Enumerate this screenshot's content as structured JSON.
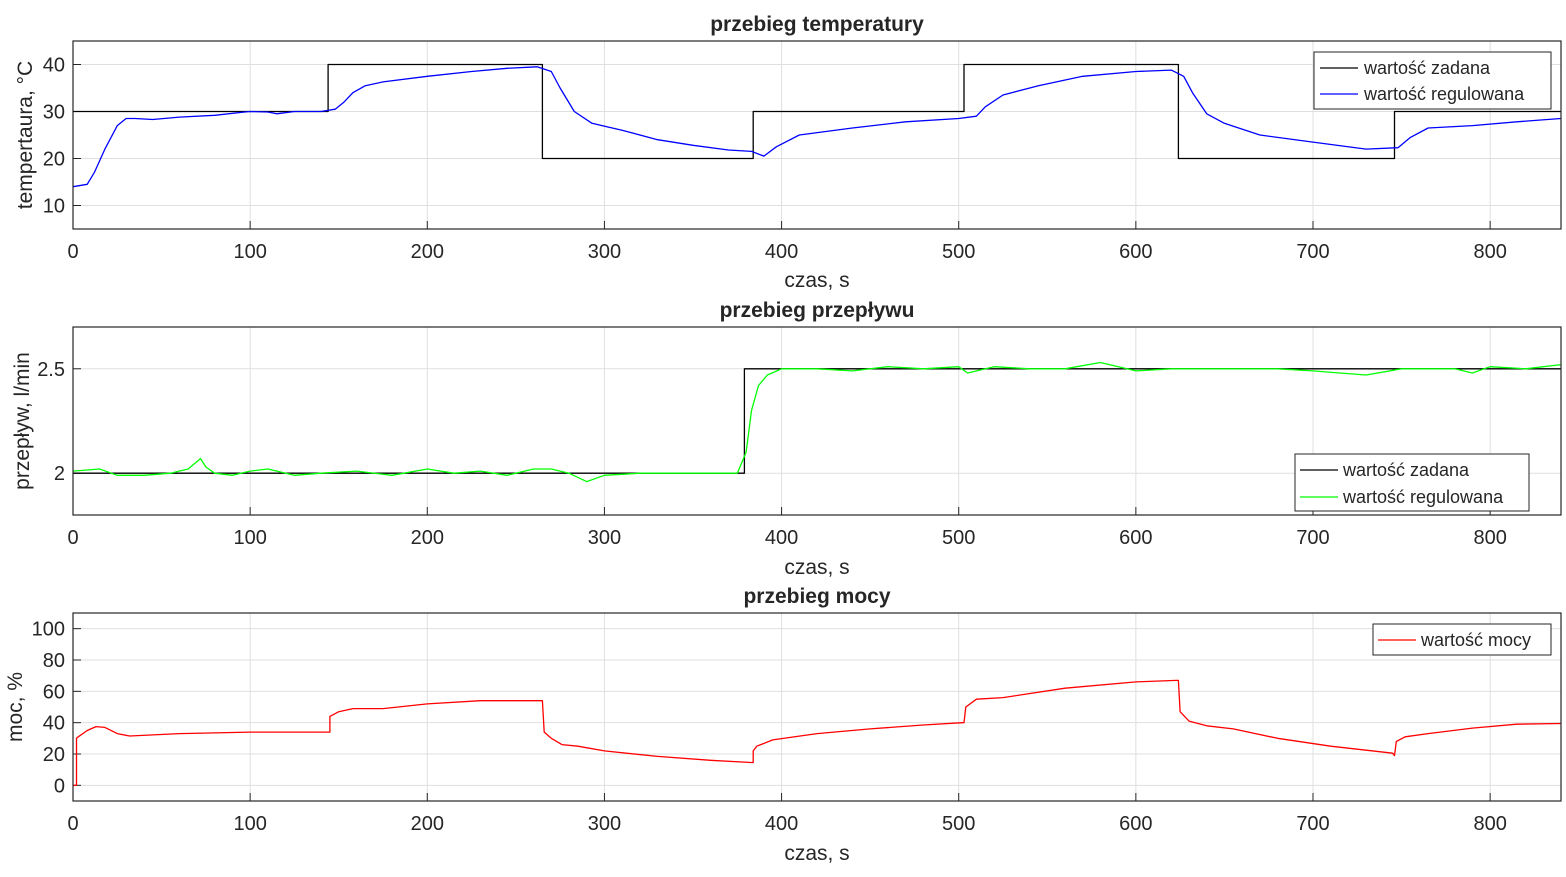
{
  "chart_data": [
    {
      "type": "line",
      "title": "przebieg temperatury",
      "xlabel": "czas, s",
      "ylabel": "tempertaura, °C",
      "xlim": [
        0,
        840
      ],
      "ylim": [
        5,
        45
      ],
      "xticks": [
        0,
        100,
        200,
        300,
        400,
        500,
        600,
        700,
        800
      ],
      "yticks": [
        10,
        20,
        30,
        40
      ],
      "grid": true,
      "legend_position": "top-right",
      "series": [
        {
          "name": "wartość zadana",
          "color": "#000000",
          "x": [
            0,
            144,
            144,
            265,
            265,
            384,
            384,
            503,
            503,
            624,
            624,
            746,
            746,
            840
          ],
          "y": [
            30,
            30,
            40,
            40,
            20,
            20,
            30,
            30,
            40,
            40,
            20,
            20,
            30,
            30
          ]
        },
        {
          "name": "wartość regulowana",
          "color": "#0000ff",
          "x": [
            0,
            8,
            12,
            18,
            25,
            30,
            35,
            45,
            60,
            80,
            95,
            100,
            110,
            115,
            125,
            140,
            148,
            153,
            158,
            165,
            175,
            200,
            225,
            245,
            262,
            270,
            275,
            283,
            293,
            310,
            330,
            350,
            370,
            383,
            390,
            397,
            410,
            440,
            470,
            500,
            510,
            515,
            525,
            545,
            570,
            600,
            620,
            627,
            632,
            640,
            650,
            670,
            700,
            730,
            748,
            755,
            765,
            790,
            815,
            840
          ],
          "y": [
            14,
            14.5,
            17,
            22,
            27,
            28.5,
            28.5,
            28.3,
            28.8,
            29.2,
            29.8,
            30,
            29.9,
            29.5,
            30,
            30,
            30.5,
            32,
            34,
            35.5,
            36.3,
            37.5,
            38.5,
            39.2,
            39.5,
            38.5,
            35,
            30,
            27.5,
            26,
            24,
            22.8,
            21.8,
            21.5,
            20.5,
            22.5,
            25,
            26.5,
            27.8,
            28.5,
            29,
            31,
            33.5,
            35.5,
            37.5,
            38.5,
            38.8,
            37.5,
            34,
            29.5,
            27.5,
            25,
            23.5,
            22,
            22.3,
            24.5,
            26.5,
            27,
            27.8,
            28.5
          ]
        }
      ]
    },
    {
      "type": "line",
      "title": "przebieg przepływu",
      "xlabel": "czas, s",
      "ylabel": "przepływ, l/min",
      "xlim": [
        0,
        840
      ],
      "ylim": [
        1.8,
        2.7
      ],
      "xticks": [
        0,
        100,
        200,
        300,
        400,
        500,
        600,
        700,
        800
      ],
      "yticks": [
        2,
        2.5
      ],
      "ytick_labels": [
        "2",
        "2.5"
      ],
      "grid": true,
      "legend_position": "bottom-right",
      "series": [
        {
          "name": "wartość zadana",
          "color": "#000000",
          "x": [
            0,
            379,
            379,
            840
          ],
          "y": [
            2,
            2,
            2.5,
            2.5
          ]
        },
        {
          "name": "wartość regulowana",
          "color": "#00ff00",
          "x": [
            0,
            15,
            25,
            40,
            55,
            65,
            72,
            75,
            80,
            90,
            100,
            110,
            125,
            140,
            160,
            180,
            200,
            215,
            230,
            245,
            260,
            270,
            280,
            290,
            300,
            320,
            340,
            360,
            375,
            380,
            383,
            387,
            392,
            400,
            420,
            440,
            460,
            480,
            500,
            505,
            520,
            540,
            560,
            580,
            600,
            620,
            640,
            660,
            680,
            700,
            715,
            730,
            750,
            770,
            780,
            790,
            800,
            820,
            840
          ],
          "y": [
            2.01,
            2.02,
            1.99,
            1.99,
            2.0,
            2.02,
            2.07,
            2.03,
            2.0,
            1.99,
            2.01,
            2.02,
            1.99,
            2.0,
            2.01,
            1.99,
            2.02,
            2.0,
            2.01,
            1.99,
            2.02,
            2.02,
            2.0,
            1.96,
            1.99,
            2.0,
            2.0,
            2.0,
            2.0,
            2.1,
            2.3,
            2.42,
            2.47,
            2.5,
            2.5,
            2.49,
            2.51,
            2.5,
            2.51,
            2.48,
            2.51,
            2.5,
            2.5,
            2.53,
            2.49,
            2.5,
            2.5,
            2.5,
            2.5,
            2.49,
            2.48,
            2.47,
            2.5,
            2.5,
            2.5,
            2.48,
            2.51,
            2.5,
            2.52
          ]
        }
      ]
    },
    {
      "type": "line",
      "title": "przebieg mocy",
      "xlabel": "czas, s",
      "ylabel": "moc, %",
      "xlim": [
        0,
        840
      ],
      "ylim": [
        -10,
        110
      ],
      "xticks": [
        0,
        100,
        200,
        300,
        400,
        500,
        600,
        700,
        800
      ],
      "yticks": [
        0,
        20,
        40,
        60,
        80,
        100
      ],
      "grid": true,
      "legend_position": "top-right",
      "series": [
        {
          "name": "wartość mocy",
          "color": "#ff0000",
          "x": [
            0,
            2,
            2,
            3,
            8,
            13,
            18,
            25,
            32,
            60,
            100,
            143,
            145,
            145,
            150,
            158,
            175,
            200,
            230,
            264,
            265,
            266,
            270,
            276,
            285,
            300,
            330,
            360,
            384,
            384,
            386,
            395,
            420,
            450,
            480,
            502,
            503,
            504,
            510,
            525,
            560,
            600,
            623,
            624,
            625,
            630,
            640,
            655,
            680,
            710,
            745,
            746,
            747,
            752,
            765,
            790,
            815,
            840
          ],
          "y": [
            0,
            0,
            30,
            31,
            35,
            37.5,
            37,
            33,
            31.5,
            33,
            34,
            34,
            34,
            44,
            47,
            49,
            49,
            52,
            54,
            54,
            54,
            34,
            30,
            26,
            25,
            22,
            18.5,
            16,
            14.5,
            22,
            25,
            29,
            33,
            36,
            38.5,
            40,
            40,
            50,
            55,
            56,
            62,
            66,
            67,
            67,
            47,
            41,
            38,
            36,
            30,
            25,
            20.5,
            19,
            28,
            31,
            33,
            36.5,
            39,
            39.5
          ]
        }
      ]
    }
  ]
}
